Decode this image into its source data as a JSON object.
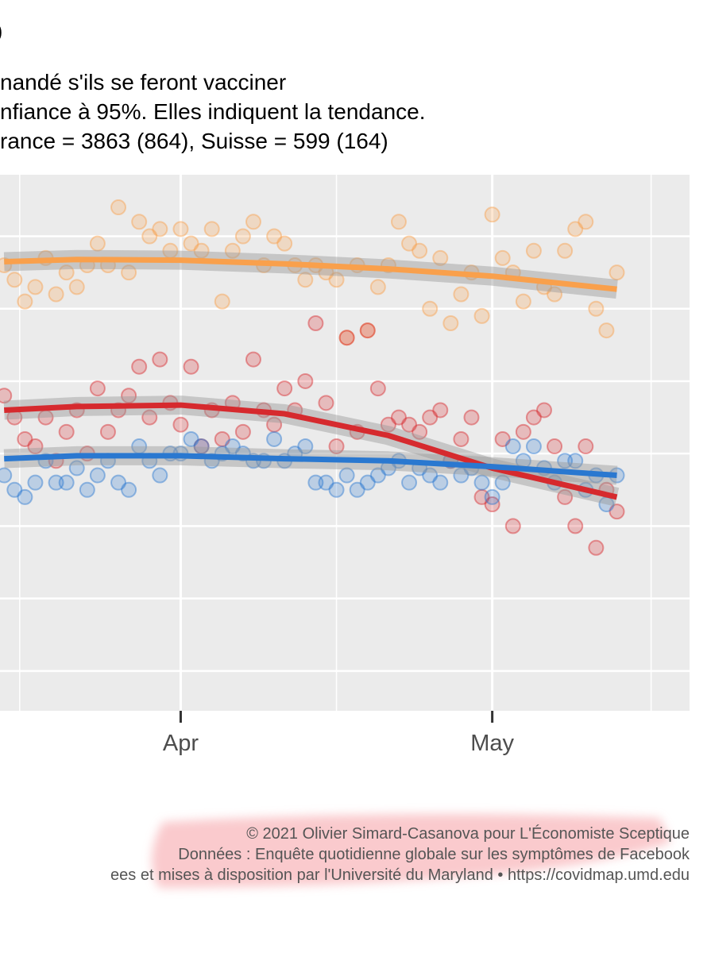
{
  "chart_data": {
    "type": "scatter",
    "title": "o",
    "subtitle": [
      "nandé s'ils se feront vacciner",
      "nfiance à 95%. Elles indiquent la tendance.",
      "rance = 3863 (864), Suisse = 599 (164)"
    ],
    "caption": [
      "© 2021 Olivier Simard-Casanova pour L'Économiste Sceptique",
      "Données : Enquête quotidienne globale sur les symptômes de Facebook",
      "ees et mises à disposition par l'Université du Maryland • https://covidmap.umd.edu"
    ],
    "x": [
      -17,
      -16,
      -15,
      -14,
      -13,
      -12,
      -11,
      -10,
      -9,
      -8,
      -7,
      -6,
      -5,
      -4,
      -3,
      -2,
      -1,
      0,
      1,
      2,
      3,
      4,
      5,
      6,
      7,
      8,
      9,
      10,
      11,
      12,
      13,
      14,
      15,
      16,
      17,
      18,
      19,
      20,
      21,
      22,
      23,
      24,
      25,
      26,
      27,
      28,
      29,
      30,
      31,
      32,
      33,
      34,
      35,
      36,
      37,
      38,
      39,
      40,
      41,
      42
    ],
    "xlim": [
      -17.4,
      49
    ],
    "xticks": [
      {
        "value": 0,
        "label": "Apr"
      },
      {
        "value": 30,
        "label": "May"
      }
    ],
    "xminor": [
      -15.5,
      15,
      45.3
    ],
    "ylim": [
      -0.55,
      6.85
    ],
    "yticks": [
      0,
      1,
      2,
      3,
      4,
      5,
      6
    ],
    "grid": true,
    "trend_x": [
      -17,
      -10,
      0,
      10,
      20,
      30,
      42
    ],
    "series": [
      {
        "color": "#f9a04c",
        "values": [
          5.6,
          5.4,
          5.1,
          5.3,
          5.7,
          5.2,
          5.5,
          5.3,
          5.6,
          5.9,
          5.6,
          6.4,
          5.5,
          6.2,
          6.0,
          6.1,
          5.8,
          6.1,
          5.9,
          5.8,
          6.1,
          5.1,
          5.8,
          6.0,
          6.2,
          5.6,
          6.0,
          5.9,
          5.6,
          5.4,
          5.6,
          5.5,
          5.4,
          4.6,
          5.6,
          4.7,
          5.3,
          5.6,
          6.2,
          5.9,
          5.8,
          5.0,
          5.7,
          4.8,
          5.2,
          5.5,
          4.9,
          6.3,
          5.7,
          5.5,
          5.1,
          5.8,
          5.3,
          5.2,
          5.8,
          6.1,
          6.2,
          5.0,
          4.7,
          5.5
        ],
        "trend": [
          5.65,
          5.68,
          5.67,
          5.62,
          5.55,
          5.45,
          5.27
        ]
      },
      {
        "color": "#d62a2e",
        "values": [
          3.8,
          3.5,
          3.2,
          3.1,
          3.5,
          2.9,
          3.3,
          3.6,
          3.0,
          3.9,
          3.3,
          3.6,
          3.8,
          4.2,
          3.5,
          4.3,
          3.7,
          3.4,
          4.2,
          3.1,
          3.6,
          3.2,
          3.7,
          3.3,
          4.3,
          3.6,
          3.4,
          3.9,
          3.6,
          4.0,
          4.8,
          3.7,
          3.1,
          4.6,
          3.3,
          4.7,
          3.9,
          3.4,
          3.5,
          3.4,
          3.3,
          3.5,
          3.6,
          2.9,
          3.2,
          3.5,
          2.4,
          2.3,
          3.2,
          2.0,
          3.3,
          3.5,
          3.6,
          3.1,
          2.4,
          2.0,
          3.1,
          1.7,
          2.5,
          2.2
        ],
        "trend": [
          3.6,
          3.65,
          3.67,
          3.55,
          3.25,
          2.8,
          2.4
        ]
      },
      {
        "color": "#2a78d0",
        "values": [
          2.7,
          2.5,
          2.4,
          2.6,
          2.9,
          2.6,
          2.6,
          2.8,
          2.5,
          2.7,
          2.9,
          2.6,
          2.5,
          3.1,
          2.9,
          2.7,
          3.0,
          3.0,
          3.2,
          3.1,
          2.9,
          3.0,
          3.1,
          3.0,
          2.9,
          2.9,
          3.2,
          2.9,
          3.0,
          3.1,
          2.6,
          2.6,
          2.5,
          2.7,
          2.5,
          2.6,
          2.7,
          2.8,
          2.9,
          2.6,
          2.8,
          2.7,
          2.6,
          2.9,
          2.7,
          2.8,
          2.6,
          2.4,
          2.6,
          3.1,
          2.9,
          3.1,
          2.8,
          2.6,
          2.9,
          2.9,
          2.5,
          2.7,
          2.3,
          2.7
        ],
        "trend": [
          2.93,
          2.97,
          2.97,
          2.93,
          2.9,
          2.82,
          2.7
        ]
      }
    ]
  }
}
